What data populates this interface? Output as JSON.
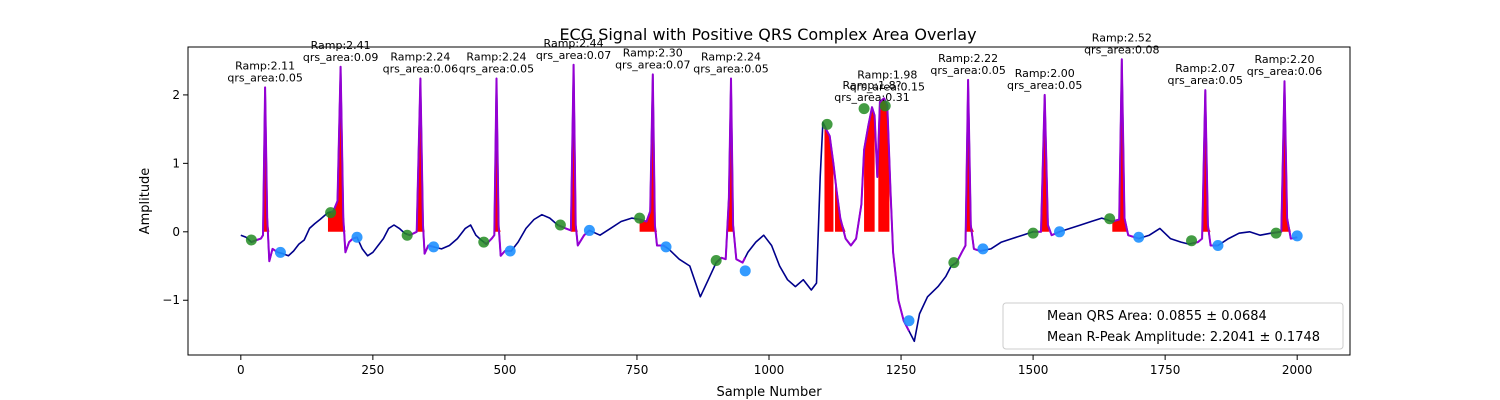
{
  "chart_data": {
    "type": "line",
    "title": "ECG Signal with Positive QRS Complex Area Overlay",
    "xlabel": "Sample Number",
    "ylabel": "Amplitude",
    "xlim": [
      -100,
      2100
    ],
    "ylim": [
      -1.8,
      2.7
    ],
    "xticks": [
      0,
      250,
      500,
      750,
      1000,
      1250,
      1500,
      1750,
      2000
    ],
    "yticks": [
      -1,
      0,
      1,
      2
    ],
    "grid": false,
    "legend": {
      "position": "lower-right",
      "entries": [
        "Mean QRS Area: 0.0855 ± 0.0684",
        "Mean R-Peak Amplitude: 2.2041 ± 0.1748"
      ]
    },
    "colors": {
      "signal": "#00008b",
      "qrs_segment": "#9400d3",
      "qrs_area": "#ff0000",
      "onset": "#228b22",
      "offset": "#1e90ff"
    },
    "signal": [
      [
        0,
        -0.05
      ],
      [
        10,
        -0.08
      ],
      [
        20,
        -0.15
      ],
      [
        30,
        -0.12
      ],
      [
        38,
        -0.1
      ],
      [
        42,
        -0.05
      ],
      [
        46,
        2.11
      ],
      [
        50,
        0.2
      ],
      [
        54,
        -0.43
      ],
      [
        60,
        -0.25
      ],
      [
        70,
        -0.3
      ],
      [
        80,
        -0.32
      ],
      [
        90,
        -0.35
      ],
      [
        100,
        -0.28
      ],
      [
        110,
        -0.18
      ],
      [
        120,
        -0.12
      ],
      [
        130,
        0.05
      ],
      [
        140,
        0.12
      ],
      [
        150,
        0.18
      ],
      [
        165,
        0.28
      ],
      [
        175,
        0.3
      ],
      [
        183,
        0.45
      ],
      [
        189,
        2.41
      ],
      [
        194,
        0.2
      ],
      [
        198,
        -0.3
      ],
      [
        205,
        -0.15
      ],
      [
        212,
        -0.1
      ],
      [
        220,
        -0.08
      ],
      [
        230,
        -0.25
      ],
      [
        240,
        -0.35
      ],
      [
        250,
        -0.3
      ],
      [
        260,
        -0.2
      ],
      [
        270,
        -0.1
      ],
      [
        280,
        0.05
      ],
      [
        290,
        0.1
      ],
      [
        300,
        0.05
      ],
      [
        310,
        -0.02
      ],
      [
        320,
        -0.05
      ],
      [
        333,
        0.0
      ],
      [
        340,
        2.24
      ],
      [
        345,
        0.1
      ],
      [
        348,
        -0.32
      ],
      [
        355,
        -0.2
      ],
      [
        365,
        -0.22
      ],
      [
        380,
        -0.25
      ],
      [
        395,
        -0.2
      ],
      [
        410,
        -0.1
      ],
      [
        425,
        0.05
      ],
      [
        435,
        0.1
      ],
      [
        445,
        -0.05
      ],
      [
        455,
        -0.12
      ],
      [
        465,
        -0.18
      ],
      [
        475,
        -0.1
      ],
      [
        480,
        -0.05
      ],
      [
        484,
        2.24
      ],
      [
        488,
        0.1
      ],
      [
        492,
        -0.35
      ],
      [
        500,
        -0.28
      ],
      [
        512,
        -0.28
      ],
      [
        525,
        -0.15
      ],
      [
        540,
        0.05
      ],
      [
        555,
        0.18
      ],
      [
        570,
        0.25
      ],
      [
        585,
        0.2
      ],
      [
        600,
        0.1
      ],
      [
        615,
        0.05
      ],
      [
        625,
        0.02
      ],
      [
        630,
        2.44
      ],
      [
        634,
        0.1
      ],
      [
        638,
        -0.2
      ],
      [
        650,
        -0.05
      ],
      [
        660,
        0.02
      ],
      [
        680,
        -0.05
      ],
      [
        700,
        0.05
      ],
      [
        720,
        0.15
      ],
      [
        740,
        0.2
      ],
      [
        755,
        0.18
      ],
      [
        768,
        0.15
      ],
      [
        775,
        0.3
      ],
      [
        780,
        2.3
      ],
      [
        784,
        0.1
      ],
      [
        788,
        -0.2
      ],
      [
        800,
        -0.2
      ],
      [
        810,
        -0.25
      ],
      [
        830,
        -0.4
      ],
      [
        850,
        -0.5
      ],
      [
        870,
        -0.95
      ],
      [
        885,
        -0.7
      ],
      [
        900,
        -0.45
      ],
      [
        910,
        -0.38
      ],
      [
        918,
        -0.4
      ],
      [
        924,
        0.5
      ],
      [
        928,
        2.24
      ],
      [
        932,
        0.1
      ],
      [
        938,
        -0.4
      ],
      [
        950,
        -0.45
      ],
      [
        960,
        -0.3
      ],
      [
        975,
        -0.15
      ],
      [
        990,
        -0.05
      ],
      [
        1005,
        -0.2
      ],
      [
        1020,
        -0.5
      ],
      [
        1035,
        -0.7
      ],
      [
        1050,
        -0.8
      ],
      [
        1065,
        -0.7
      ],
      [
        1080,
        -0.85
      ],
      [
        1090,
        -0.75
      ],
      [
        1097,
        0.8
      ],
      [
        1102,
        1.6
      ],
      [
        1108,
        1.5
      ],
      [
        1115,
        1.4
      ],
      [
        1122,
        1.0
      ],
      [
        1128,
        0.6
      ],
      [
        1135,
        0.2
      ],
      [
        1145,
        -0.1
      ],
      [
        1155,
        -0.2
      ],
      [
        1165,
        -0.1
      ],
      [
        1175,
        0.4
      ],
      [
        1180,
        1.2
      ],
      [
        1188,
        1.55
      ],
      [
        1195,
        1.82
      ],
      [
        1200,
        1.7
      ],
      [
        1205,
        0.8
      ],
      [
        1210,
        1.9
      ],
      [
        1218,
        1.95
      ],
      [
        1224,
        1.85
      ],
      [
        1230,
        0.6
      ],
      [
        1235,
        -0.3
      ],
      [
        1245,
        -1.0
      ],
      [
        1255,
        -1.3
      ],
      [
        1265,
        -1.45
      ],
      [
        1275,
        -1.6
      ],
      [
        1285,
        -1.2
      ],
      [
        1300,
        -0.95
      ],
      [
        1320,
        -0.8
      ],
      [
        1335,
        -0.65
      ],
      [
        1345,
        -0.5
      ],
      [
        1355,
        -0.45
      ],
      [
        1365,
        -0.3
      ],
      [
        1372,
        -0.2
      ],
      [
        1377,
        2.22
      ],
      [
        1382,
        0.1
      ],
      [
        1388,
        -0.25
      ],
      [
        1400,
        -0.28
      ],
      [
        1420,
        -0.25
      ],
      [
        1440,
        -0.15
      ],
      [
        1460,
        -0.1
      ],
      [
        1480,
        -0.05
      ],
      [
        1500,
        0.0
      ],
      [
        1515,
        0.0
      ],
      [
        1522,
        2.0
      ],
      [
        1528,
        0.1
      ],
      [
        1535,
        -0.05
      ],
      [
        1550,
        0.0
      ],
      [
        1570,
        0.05
      ],
      [
        1590,
        0.1
      ],
      [
        1610,
        0.15
      ],
      [
        1630,
        0.2
      ],
      [
        1650,
        0.15
      ],
      [
        1663,
        0.18
      ],
      [
        1668,
        2.52
      ],
      [
        1673,
        0.2
      ],
      [
        1680,
        -0.05
      ],
      [
        1700,
        -0.1
      ],
      [
        1720,
        -0.05
      ],
      [
        1740,
        0.05
      ],
      [
        1760,
        -0.1
      ],
      [
        1780,
        -0.15
      ],
      [
        1795,
        -0.18
      ],
      [
        1812,
        -0.15
      ],
      [
        1820,
        -0.1
      ],
      [
        1826,
        2.07
      ],
      [
        1831,
        0.1
      ],
      [
        1836,
        -0.2
      ],
      [
        1850,
        -0.2
      ],
      [
        1870,
        -0.1
      ],
      [
        1890,
        -0.02
      ],
      [
        1910,
        0.0
      ],
      [
        1930,
        -0.05
      ],
      [
        1950,
        -0.02
      ],
      [
        1970,
        0.0
      ],
      [
        1976,
        2.2
      ],
      [
        1981,
        0.2
      ],
      [
        1988,
        -0.1
      ],
      [
        2000,
        -0.08
      ]
    ],
    "qrs_segments": [
      [
        20,
        70
      ],
      [
        170,
        220
      ],
      [
        315,
        365
      ],
      [
        460,
        510
      ],
      [
        600,
        660
      ],
      [
        750,
        805
      ],
      [
        900,
        955
      ],
      [
        1105,
        1265
      ],
      [
        1350,
        1405
      ],
      [
        1500,
        1550
      ],
      [
        1645,
        1700
      ],
      [
        1800,
        1850
      ],
      [
        1950,
        2000
      ]
    ],
    "qrs_areas": [
      [
        38,
        54
      ],
      [
        165,
        198
      ],
      [
        333,
        348
      ],
      [
        475,
        492
      ],
      [
        625,
        638
      ],
      [
        755,
        788
      ],
      [
        920,
        935
      ],
      [
        1105,
        1122
      ],
      [
        1125,
        1155
      ],
      [
        1180,
        1200
      ],
      [
        1207,
        1228
      ],
      [
        1372,
        1388
      ],
      [
        1515,
        1530
      ],
      [
        1650,
        1680
      ],
      [
        1818,
        1836
      ],
      [
        1970,
        1988
      ]
    ],
    "onsets": [
      [
        20,
        -0.12
      ],
      [
        170,
        0.28
      ],
      [
        315,
        -0.05
      ],
      [
        460,
        -0.15
      ],
      [
        605,
        0.1
      ],
      [
        755,
        0.2
      ],
      [
        900,
        -0.42
      ],
      [
        1110,
        1.57
      ],
      [
        1180,
        1.8
      ],
      [
        1220,
        1.84
      ],
      [
        1350,
        -0.45
      ],
      [
        1500,
        -0.02
      ],
      [
        1645,
        0.19
      ],
      [
        1800,
        -0.13
      ],
      [
        1960,
        -0.02
      ]
    ],
    "offsets": [
      [
        75,
        -0.3
      ],
      [
        220,
        -0.08
      ],
      [
        365,
        -0.22
      ],
      [
        510,
        -0.28
      ],
      [
        660,
        0.02
      ],
      [
        805,
        -0.22
      ],
      [
        955,
        -0.57
      ],
      [
        1265,
        -1.3
      ],
      [
        1405,
        -0.25
      ],
      [
        1550,
        0.0
      ],
      [
        1700,
        -0.08
      ],
      [
        1850,
        -0.2
      ],
      [
        2000,
        -0.06
      ]
    ],
    "annotations": [
      {
        "x": 46,
        "y": 2.11,
        "lines": [
          "Ramp:2.11",
          "qrs_area:0.05"
        ]
      },
      {
        "x": 189,
        "y": 2.41,
        "lines": [
          "Ramp:2.41",
          "qrs_area:0.09"
        ]
      },
      {
        "x": 340,
        "y": 2.24,
        "lines": [
          "Ramp:2.24",
          "qrs_area:0.06"
        ]
      },
      {
        "x": 484,
        "y": 2.24,
        "lines": [
          "Ramp:2.24",
          "qrs_area:0.05"
        ]
      },
      {
        "x": 630,
        "y": 2.44,
        "lines": [
          "Ramp:2.44",
          "qrs_area:0.07"
        ]
      },
      {
        "x": 780,
        "y": 2.3,
        "lines": [
          "Ramp:2.30",
          "qrs_area:0.07"
        ]
      },
      {
        "x": 928,
        "y": 2.24,
        "lines": [
          "Ramp:2.24",
          "qrs_area:0.05"
        ]
      },
      {
        "x": 1195,
        "y": 1.82,
        "lines": [
          "Ramp:1.8?",
          "qrs_area:0.31"
        ]
      },
      {
        "x": 1224,
        "y": 1.98,
        "lines": [
          "Ramp:1.98",
          "qrs_area:0.15"
        ]
      },
      {
        "x": 1377,
        "y": 2.22,
        "lines": [
          "Ramp:2.22",
          "qrs_area:0.05"
        ]
      },
      {
        "x": 1522,
        "y": 2.0,
        "lines": [
          "Ramp:2.00",
          "qrs_area:0.05"
        ]
      },
      {
        "x": 1668,
        "y": 2.52,
        "lines": [
          "Ramp:2.52",
          "qrs_area:0.08"
        ]
      },
      {
        "x": 1826,
        "y": 2.07,
        "lines": [
          "Ramp:2.07",
          "qrs_area:0.05"
        ]
      },
      {
        "x": 1976,
        "y": 2.2,
        "lines": [
          "Ramp:2.20",
          "qrs_area:0.06"
        ]
      }
    ]
  }
}
